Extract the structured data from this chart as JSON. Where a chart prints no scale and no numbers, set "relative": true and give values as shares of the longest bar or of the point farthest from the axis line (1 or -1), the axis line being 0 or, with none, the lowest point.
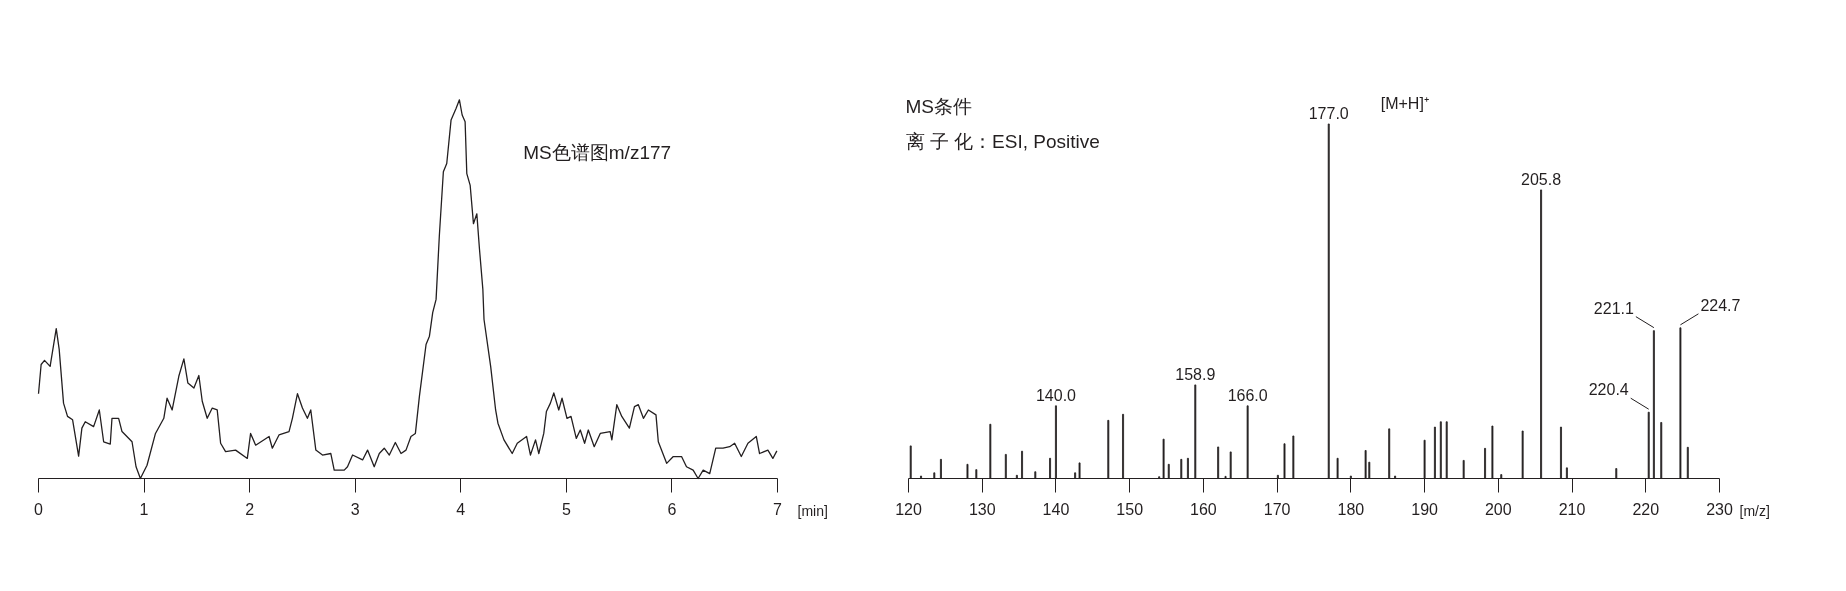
{
  "chart_data": [
    {
      "type": "line",
      "title": "MS色谱图m/z177",
      "xlabel": "[min]",
      "relative": true,
      "color": "#231f20",
      "xlim": [
        0,
        7
      ],
      "xticks": [
        0,
        1,
        2,
        3,
        4,
        5,
        6,
        7
      ],
      "tick_labels": "x",
      "grid": false,
      "x": [
        0,
        0.025,
        0.057,
        0.11,
        0.168,
        0.196,
        0.237,
        0.275,
        0.323,
        0.38,
        0.411,
        0.443,
        0.522,
        0.576,
        0.617,
        0.68,
        0.696,
        0.759,
        0.791,
        0.886,
        0.924,
        0.965,
        1.028,
        1.108,
        1.187,
        1.218,
        1.266,
        1.329,
        1.377,
        1.415,
        1.472,
        1.519,
        1.551,
        1.598,
        1.646,
        1.693,
        1.725,
        1.772,
        1.867,
        1.978,
        2.009,
        2.057,
        2.184,
        2.215,
        2.278,
        2.373,
        2.405,
        2.453,
        2.5,
        2.547,
        2.579,
        2.627,
        2.69,
        2.769,
        2.801,
        2.896,
        2.927,
        2.975,
        3.07,
        3.117,
        3.18,
        3.228,
        3.275,
        3.323,
        3.38,
        3.434,
        3.481,
        3.528,
        3.57,
        3.608,
        3.671,
        3.703,
        3.734,
        3.766,
        3.797,
        3.835,
        3.867,
        3.908,
        3.956,
        3.987,
        4.013,
        4.041,
        4.057,
        4.089,
        4.12,
        4.152,
        4.177,
        4.209,
        4.22,
        4.283,
        4.33,
        4.352,
        4.409,
        4.487,
        4.535,
        4.623,
        4.66,
        4.708,
        4.739,
        4.786,
        4.811,
        4.849,
        4.881,
        4.928,
        4.959,
        5.006,
        5.044,
        5.094,
        5.132,
        5.173,
        5.208,
        5.264,
        5.321,
        5.415,
        5.431,
        5.478,
        5.525,
        5.597,
        5.645,
        5.682,
        5.73,
        5.777,
        5.849,
        5.871,
        5.95,
        6.013,
        6.091,
        6.138,
        6.201,
        6.248,
        6.296,
        6.358,
        6.415,
        6.484,
        6.547,
        6.594,
        6.657,
        6.72,
        6.799,
        6.83,
        6.909,
        6.956,
        6.994
      ],
      "values": [
        0.224,
        0.301,
        0.312,
        0.296,
        0.396,
        0.341,
        0.199,
        0.164,
        0.155,
        0.059,
        0.133,
        0.15,
        0.137,
        0.181,
        0.097,
        0.091,
        0.159,
        0.159,
        0.124,
        0.097,
        0.031,
        0,
        0.035,
        0.119,
        0.159,
        0.212,
        0.181,
        0.27,
        0.316,
        0.252,
        0.239,
        0.272,
        0.204,
        0.159,
        0.186,
        0.181,
        0.093,
        0.071,
        0.075,
        0.053,
        0.119,
        0.088,
        0.111,
        0.08,
        0.115,
        0.124,
        0.159,
        0.224,
        0.186,
        0.159,
        0.181,
        0.075,
        0.062,
        0.066,
        0.022,
        0.022,
        0.031,
        0.062,
        0.049,
        0.075,
        0.031,
        0.066,
        0.08,
        0.062,
        0.095,
        0.066,
        0.075,
        0.111,
        0.119,
        0.217,
        0.354,
        0.376,
        0.438,
        0.473,
        0.642,
        0.81,
        0.832,
        0.947,
        0.978,
        1,
        0.96,
        0.942,
        0.805,
        0.774,
        0.673,
        0.699,
        0.606,
        0.5,
        0.42,
        0.296,
        0.181,
        0.146,
        0.102,
        0.066,
        0.093,
        0.111,
        0.062,
        0.102,
        0.066,
        0.119,
        0.177,
        0.199,
        0.226,
        0.181,
        0.212,
        0.159,
        0.164,
        0.106,
        0.128,
        0.093,
        0.128,
        0.084,
        0.119,
        0.124,
        0.102,
        0.195,
        0.164,
        0.133,
        0.19,
        0.195,
        0.159,
        0.181,
        0.168,
        0.097,
        0.04,
        0.058,
        0.058,
        0.031,
        0.022,
        0,
        0.022,
        0.013,
        0.08,
        0.08,
        0.084,
        0.093,
        0.058,
        0.093,
        0.111,
        0.066,
        0.075,
        0.053,
        0.073
      ]
    },
    {
      "type": "bar",
      "xlabel": "[m/z]",
      "relative": true,
      "color": "#231f20",
      "xlim": [
        120,
        230
      ],
      "xticks": [
        120,
        130,
        140,
        150,
        160,
        170,
        180,
        190,
        200,
        210,
        220,
        230
      ],
      "tick_labels": "x",
      "grid": false,
      "annotations": [
        "MS条件",
        "离 子 化：ESI, Positive",
        {
          "text": "140.0",
          "x": 140.0,
          "y": 0.205
        },
        {
          "text": "158.9",
          "x": 158.9,
          "y": 0.264
        },
        {
          "text": "166.0",
          "x": 166.0,
          "y": 0.205
        },
        {
          "text": "177.0",
          "x": 177.0,
          "y": 1
        },
        {
          "text": "205.8",
          "x": 205.8,
          "y": 0.814
        },
        {
          "text": "220.4",
          "x": 220.4,
          "y": 0.187
        },
        {
          "text": "221.1",
          "x": 221.1,
          "y": 0.417
        },
        {
          "text": "224.7",
          "x": 224.7,
          "y": 0.425
        },
        "[M+H]⁺"
      ],
      "x": [
        120.3,
        121.7,
        123.5,
        124.4,
        128.0,
        129.2,
        131.1,
        133.2,
        134.7,
        135.4,
        137.2,
        139.2,
        140.0,
        142.6,
        143.2,
        147.1,
        149.1,
        154.0,
        154.6,
        155.3,
        157.0,
        157.9,
        158.9,
        162.0,
        163.0,
        163.7,
        166.0,
        170.1,
        171.0,
        172.2,
        177.0,
        178.2,
        180.0,
        182.0,
        182.5,
        185.2,
        186.0,
        190.0,
        191.4,
        192.2,
        193.0,
        195.3,
        198.2,
        199.2,
        200.4,
        203.3,
        205.8,
        208.5,
        209.3,
        216.0,
        220.4,
        221.1,
        222.1,
        224.7,
        225.7
      ],
      "values": [
        0.092,
        0.007,
        0.016,
        0.054,
        0.04,
        0.025,
        0.153,
        0.068,
        0.009,
        0.077,
        0.019,
        0.057,
        0.205,
        0.016,
        0.044,
        0.164,
        0.181,
        0.005,
        0.111,
        0.04,
        0.054,
        0.057,
        0.264,
        0.089,
        0.006,
        0.075,
        0.205,
        0.009,
        0.098,
        0.12,
        1,
        0.057,
        0.007,
        0.079,
        0.046,
        0.14,
        0.007,
        0.108,
        0.145,
        0.16,
        0.16,
        0.051,
        0.085,
        0.148,
        0.011,
        0.134,
        0.814,
        0.145,
        0.03,
        0.028,
        0.187,
        0.417,
        0.158,
        0.425,
        0.088
      ]
    }
  ]
}
